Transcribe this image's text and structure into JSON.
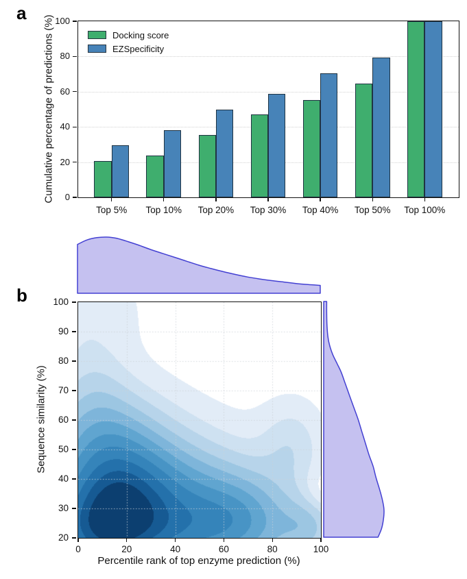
{
  "figure": {
    "panel_a_label": "a",
    "panel_b_label": "b"
  },
  "chart_data": [
    {
      "id": "panel_a",
      "type": "bar",
      "ylabel": "Cumulative percentage of predictions (%)",
      "ylim": [
        0,
        100
      ],
      "yticks": [
        0,
        20,
        40,
        60,
        80,
        100
      ],
      "grid": "dotted-horizontal",
      "categories": [
        "Top 5%",
        "Top 10%",
        "Top 20%",
        "Top 30%",
        "Top 40%",
        "Top 50%",
        "Top 100%"
      ],
      "series": [
        {
          "name": "Docking score",
          "color": "#3fae6e",
          "values": [
            20.5,
            23.7,
            35.3,
            47.0,
            55.4,
            64.5,
            100
          ]
        },
        {
          "name": "EZSpecificity",
          "color": "#4783b8",
          "values": [
            29.5,
            38.3,
            49.7,
            58.8,
            70.6,
            79.4,
            100
          ]
        }
      ],
      "legend_position": "upper-left"
    },
    {
      "id": "panel_b",
      "type": "area",
      "subtype": "joint-kde-contour",
      "xlabel": "Percentile rank of top enzyme prediction (%)",
      "ylabel": "Sequence similarity (%)",
      "xlim": [
        0,
        100
      ],
      "ylim": [
        20,
        100
      ],
      "xticks": [
        0,
        20,
        40,
        60,
        80,
        100
      ],
      "yticks": [
        100,
        90,
        80,
        70,
        60,
        50,
        40,
        30,
        20
      ],
      "grid": "dotted-both",
      "contour_palette_light_to_dark": [
        "#e2ecf7",
        "#cee1f1",
        "#b7d4ea",
        "#9cc6e2",
        "#7eb5da",
        "#60a5d0",
        "#4894c5",
        "#3584ba",
        "#2471ab",
        "#165a93",
        "#0c3f70"
      ],
      "contour_level_fractions": [
        0.04,
        0.12,
        0.2,
        0.29,
        0.38,
        0.47,
        0.56,
        0.65,
        0.74,
        0.82,
        0.89
      ],
      "density_peak": {
        "x": 7,
        "y": 25
      },
      "density_components_w_cx_cy_sx_sy": [
        [
          1.0,
          6,
          23,
          20,
          16
        ],
        [
          0.8,
          18,
          40,
          20,
          16
        ],
        [
          0.65,
          45,
          33,
          24,
          15
        ],
        [
          0.55,
          68,
          28,
          16,
          11
        ],
        [
          0.42,
          8,
          58,
          16,
          12
        ],
        [
          0.16,
          6,
          74,
          10,
          10
        ],
        [
          0.3,
          88,
          52,
          9,
          10
        ],
        [
          0.38,
          95,
          24,
          8,
          7
        ],
        [
          0.19,
          4,
          97,
          15,
          13
        ],
        [
          -0.16,
          101,
          36,
          6,
          5
        ],
        [
          0.5,
          40,
          18,
          35,
          10
        ]
      ],
      "marginal_fill": "#c5c1f0",
      "marginal_stroke": "#4340d2",
      "marginal_top": {
        "x": [
          0,
          4,
          8,
          12,
          16,
          20,
          25,
          30,
          35,
          40,
          45,
          50,
          55,
          60,
          65,
          70,
          75,
          80,
          85,
          90,
          95,
          100
        ],
        "h": [
          0.87,
          0.95,
          0.99,
          1.0,
          0.98,
          0.93,
          0.86,
          0.78,
          0.71,
          0.64,
          0.57,
          0.5,
          0.44,
          0.385,
          0.335,
          0.29,
          0.255,
          0.225,
          0.2,
          0.175,
          0.155,
          0.14
        ]
      },
      "marginal_right": {
        "y": [
          100,
          96,
          92,
          88,
          85,
          82,
          79,
          76,
          72,
          68,
          64,
          60,
          56,
          52,
          48,
          44,
          40,
          36,
          32,
          29,
          26,
          23,
          20
        ],
        "w": [
          0.05,
          0.05,
          0.055,
          0.07,
          0.1,
          0.15,
          0.22,
          0.29,
          0.36,
          0.43,
          0.5,
          0.57,
          0.63,
          0.69,
          0.75,
          0.82,
          0.87,
          0.93,
          0.98,
          1.0,
          0.99,
          0.96,
          0.9
        ]
      }
    }
  ]
}
